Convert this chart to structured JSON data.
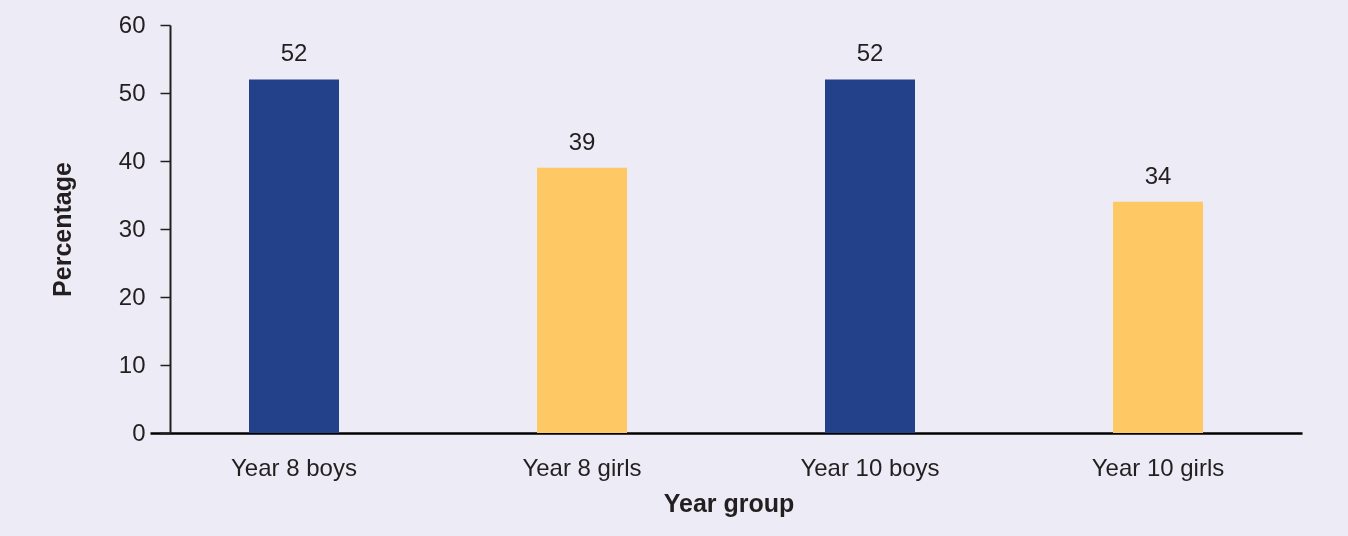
{
  "chart_data": {
    "type": "bar",
    "xlabel": "Year group",
    "ylabel": "Percentage",
    "categories": [
      "Year 8 boys",
      "Year 8 girls",
      "Year 10 boys",
      "Year 10 girls"
    ],
    "values": [
      52,
      39,
      52,
      34
    ],
    "colors": [
      "#23408a",
      "#fec864",
      "#23408a",
      "#fec864"
    ],
    "ylim": [
      0,
      60
    ],
    "yticks": [
      0,
      10,
      20,
      30,
      40,
      50,
      60
    ],
    "grid": false,
    "data_labels": true
  }
}
